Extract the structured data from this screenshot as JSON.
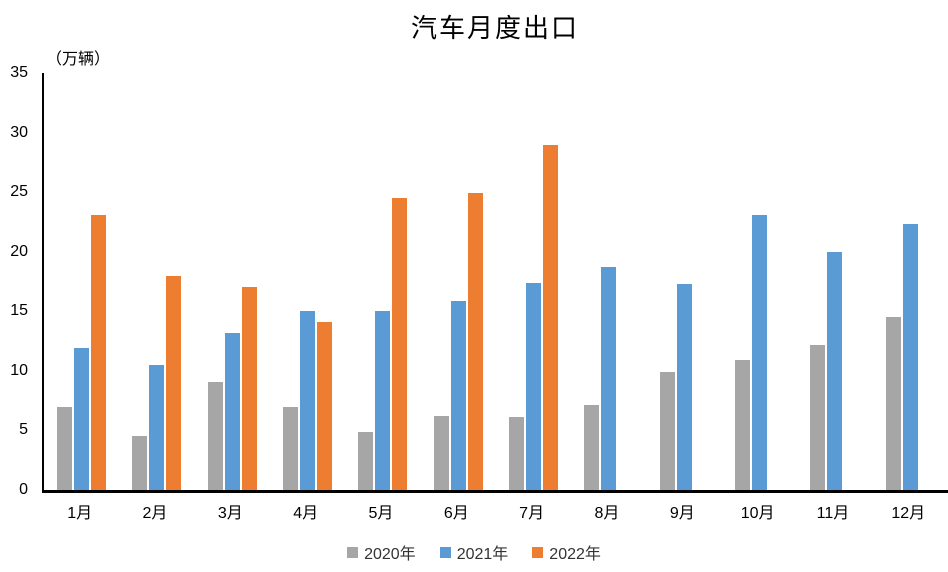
{
  "chart_data": {
    "type": "bar",
    "title": "汽车月度出口",
    "ylabel": "（万辆）",
    "categories": [
      "1月",
      "2月",
      "3月",
      "4月",
      "5月",
      "6月",
      "7月",
      "8月",
      "9月",
      "10月",
      "11月",
      "12月"
    ],
    "series": [
      {
        "name": "2020年",
        "color": "#A6A6A6",
        "values": [
          7.0,
          4.5,
          9.1,
          7.0,
          4.9,
          6.2,
          6.1,
          7.1,
          9.9,
          10.9,
          12.2,
          14.5
        ]
      },
      {
        "name": "2021年",
        "color": "#5B9BD5",
        "values": [
          11.9,
          10.5,
          13.2,
          15.0,
          15.0,
          15.9,
          17.4,
          18.7,
          17.3,
          23.1,
          20.0,
          22.3
        ]
      },
      {
        "name": "2022年",
        "color": "#ED7D31",
        "values": [
          23.1,
          18.0,
          17.0,
          14.1,
          24.5,
          24.9,
          29.0,
          null,
          null,
          null,
          null,
          null
        ]
      }
    ],
    "ylim": [
      0,
      35
    ],
    "yticks": [
      0,
      5,
      10,
      15,
      20,
      25,
      30,
      35
    ],
    "grid": false,
    "legend_position": "bottom",
    "axis_color": "#000000"
  }
}
